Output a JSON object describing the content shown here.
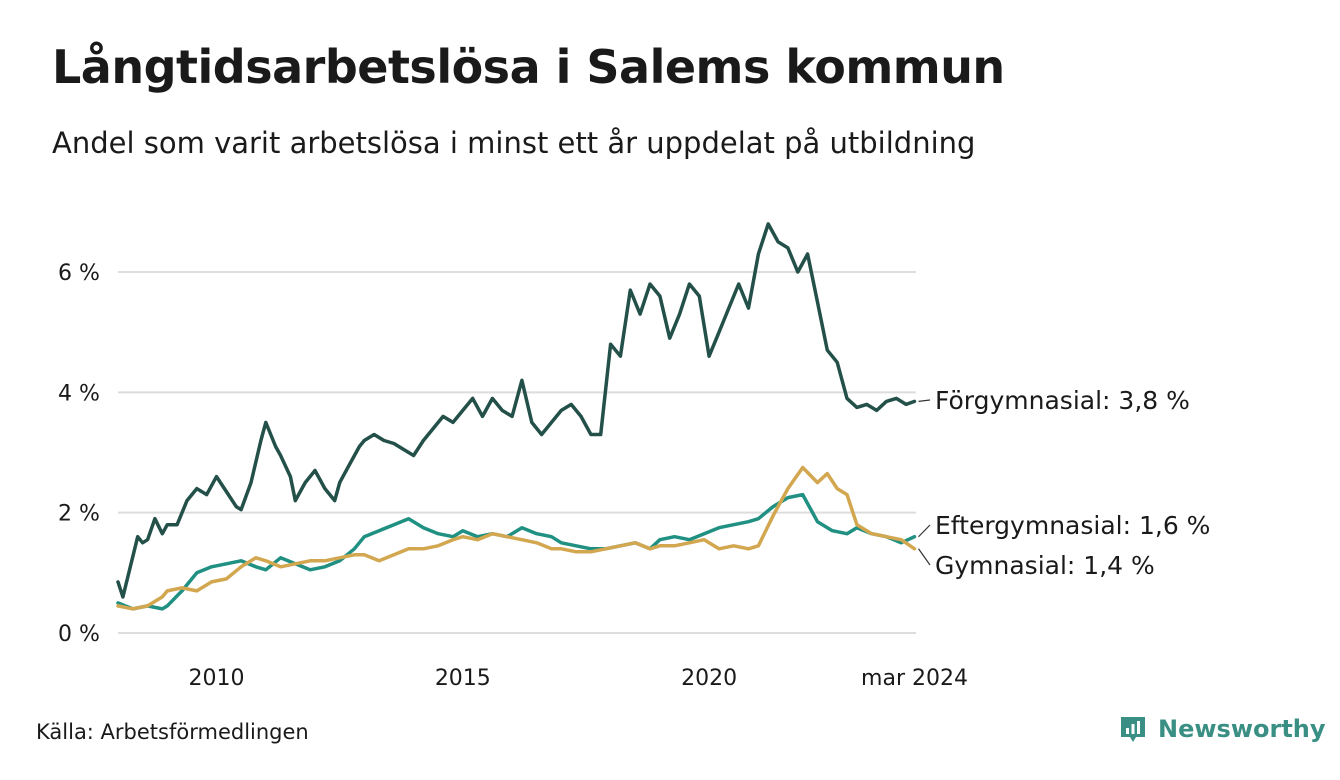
{
  "chart_data": {
    "type": "line",
    "title": "Långtidsarbetslösa i Salems kommun",
    "subtitle": "Andel som varit arbetslösa i minst ett år uppdelat på utbildning",
    "source": "Källa: Arbetsförmedlingen",
    "brand": "Newsworthy",
    "xlabel": "",
    "ylabel": "",
    "ylim": [
      0,
      7
    ],
    "xlim": [
      2008.0,
      2024.2
    ],
    "y_ticks": [
      {
        "value": 0,
        "label": "0 %"
      },
      {
        "value": 2,
        "label": "2 %"
      },
      {
        "value": 4,
        "label": "4 %"
      },
      {
        "value": 6,
        "label": "6 %"
      }
    ],
    "x_ticks": [
      {
        "value": 2010,
        "label": "2010"
      },
      {
        "value": 2015,
        "label": "2015"
      },
      {
        "value": 2020,
        "label": "2020"
      },
      {
        "value": 2024.17,
        "label": "mar 2024"
      }
    ],
    "grid": true,
    "series": [
      {
        "name": "Förgymnasial",
        "end_label": "Förgymnasial: 3,8 %",
        "color": "#24504a",
        "x": [
          2008.0,
          2008.1,
          2008.25,
          2008.4,
          2008.5,
          2008.6,
          2008.75,
          2008.9,
          2009.0,
          2009.2,
          2009.4,
          2009.6,
          2009.8,
          2010.0,
          2010.2,
          2010.4,
          2010.5,
          2010.7,
          2010.9,
          2011.0,
          2011.2,
          2011.3,
          2011.5,
          2011.6,
          2011.8,
          2012.0,
          2012.2,
          2012.4,
          2012.5,
          2012.7,
          2012.9,
          2013.0,
          2013.2,
          2013.4,
          2013.6,
          2013.8,
          2014.0,
          2014.2,
          2014.4,
          2014.6,
          2014.8,
          2015.0,
          2015.2,
          2015.4,
          2015.6,
          2015.8,
          2016.0,
          2016.2,
          2016.4,
          2016.6,
          2016.8,
          2017.0,
          2017.2,
          2017.4,
          2017.6,
          2017.8,
          2018.0,
          2018.2,
          2018.4,
          2018.6,
          2018.8,
          2019.0,
          2019.2,
          2019.4,
          2019.6,
          2019.8,
          2020.0,
          2020.2,
          2020.4,
          2020.6,
          2020.8,
          2021.0,
          2021.2,
          2021.4,
          2021.6,
          2021.8,
          2022.0,
          2022.2,
          2022.4,
          2022.6,
          2022.8,
          2023.0,
          2023.2,
          2023.4,
          2023.6,
          2023.8,
          2024.0,
          2024.17
        ],
        "values": [
          0.85,
          0.6,
          1.1,
          1.6,
          1.5,
          1.55,
          1.9,
          1.65,
          1.8,
          1.8,
          2.2,
          2.4,
          2.3,
          2.6,
          2.35,
          2.1,
          2.05,
          2.5,
          3.2,
          3.5,
          3.1,
          2.95,
          2.6,
          2.2,
          2.5,
          2.7,
          2.4,
          2.2,
          2.5,
          2.8,
          3.1,
          3.2,
          3.3,
          3.2,
          3.15,
          3.05,
          2.95,
          3.2,
          3.4,
          3.6,
          3.5,
          3.7,
          3.9,
          3.6,
          3.9,
          3.7,
          3.6,
          4.2,
          3.5,
          3.3,
          3.5,
          3.7,
          3.8,
          3.6,
          3.3,
          3.3,
          4.8,
          4.6,
          5.7,
          5.3,
          5.8,
          5.6,
          4.9,
          5.3,
          5.8,
          5.6,
          4.6,
          5.0,
          5.4,
          5.8,
          5.4,
          6.3,
          6.8,
          6.5,
          6.4,
          6.0,
          6.3,
          5.5,
          4.7,
          4.5,
          3.9,
          3.75,
          3.8,
          3.7,
          3.85,
          3.9,
          3.8,
          3.85
        ]
      },
      {
        "name": "Eftergymnasial",
        "end_label": "Eftergymnasial: 1,6 %",
        "color": "#1f9082",
        "x": [
          2008.0,
          2008.3,
          2008.6,
          2008.9,
          2009.0,
          2009.3,
          2009.6,
          2009.9,
          2010.2,
          2010.5,
          2010.8,
          2011.0,
          2011.3,
          2011.6,
          2011.9,
          2012.2,
          2012.5,
          2012.8,
          2013.0,
          2013.3,
          2013.6,
          2013.9,
          2014.2,
          2014.5,
          2014.8,
          2015.0,
          2015.3,
          2015.6,
          2015.9,
          2016.2,
          2016.5,
          2016.8,
          2017.0,
          2017.3,
          2017.6,
          2017.9,
          2018.2,
          2018.5,
          2018.8,
          2019.0,
          2019.3,
          2019.6,
          2019.9,
          2020.2,
          2020.5,
          2020.8,
          2021.0,
          2021.3,
          2021.6,
          2021.9,
          2022.2,
          2022.5,
          2022.8,
          2023.0,
          2023.3,
          2023.6,
          2023.9,
          2024.17
        ],
        "values": [
          0.5,
          0.4,
          0.45,
          0.4,
          0.45,
          0.7,
          1.0,
          1.1,
          1.15,
          1.2,
          1.1,
          1.05,
          1.25,
          1.15,
          1.05,
          1.1,
          1.2,
          1.4,
          1.6,
          1.7,
          1.8,
          1.9,
          1.75,
          1.65,
          1.6,
          1.7,
          1.6,
          1.65,
          1.6,
          1.75,
          1.65,
          1.6,
          1.5,
          1.45,
          1.4,
          1.4,
          1.45,
          1.5,
          1.4,
          1.55,
          1.6,
          1.55,
          1.65,
          1.75,
          1.8,
          1.85,
          1.9,
          2.1,
          2.25,
          2.3,
          1.85,
          1.7,
          1.65,
          1.75,
          1.65,
          1.6,
          1.5,
          1.6
        ]
      },
      {
        "name": "Gymnasial",
        "end_label": "Gymnasial: 1,4 %",
        "color": "#d2a750",
        "x": [
          2008.0,
          2008.3,
          2008.6,
          2008.9,
          2009.0,
          2009.3,
          2009.6,
          2009.9,
          2010.2,
          2010.5,
          2010.8,
          2011.0,
          2011.3,
          2011.6,
          2011.9,
          2012.2,
          2012.5,
          2012.8,
          2013.0,
          2013.3,
          2013.6,
          2013.9,
          2014.2,
          2014.5,
          2014.8,
          2015.0,
          2015.3,
          2015.6,
          2015.9,
          2016.2,
          2016.5,
          2016.8,
          2017.0,
          2017.3,
          2017.6,
          2017.9,
          2018.2,
          2018.5,
          2018.8,
          2019.0,
          2019.3,
          2019.6,
          2019.9,
          2020.2,
          2020.5,
          2020.8,
          2021.0,
          2021.3,
          2021.6,
          2021.9,
          2022.2,
          2022.4,
          2022.6,
          2022.8,
          2023.0,
          2023.3,
          2023.6,
          2023.9,
          2024.17
        ],
        "values": [
          0.45,
          0.4,
          0.45,
          0.6,
          0.7,
          0.75,
          0.7,
          0.85,
          0.9,
          1.1,
          1.25,
          1.2,
          1.1,
          1.15,
          1.2,
          1.2,
          1.25,
          1.3,
          1.3,
          1.2,
          1.3,
          1.4,
          1.4,
          1.45,
          1.55,
          1.6,
          1.55,
          1.65,
          1.6,
          1.55,
          1.5,
          1.4,
          1.4,
          1.35,
          1.35,
          1.4,
          1.45,
          1.5,
          1.4,
          1.45,
          1.45,
          1.5,
          1.55,
          1.4,
          1.45,
          1.4,
          1.45,
          1.95,
          2.4,
          2.75,
          2.5,
          2.65,
          2.4,
          2.3,
          1.8,
          1.65,
          1.6,
          1.55,
          1.4
        ]
      }
    ]
  }
}
